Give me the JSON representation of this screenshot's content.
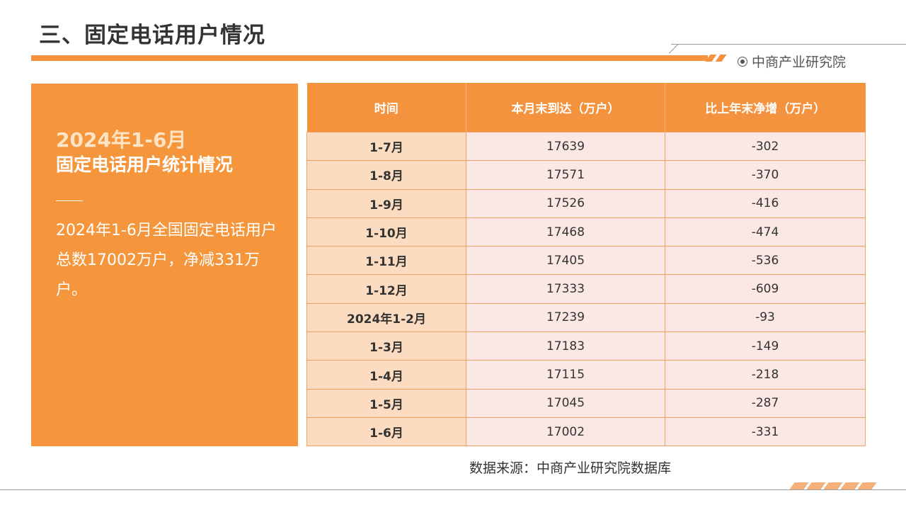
{
  "header": {
    "title": "三、固定电话用户情况",
    "brand": "中商产业研究院",
    "brand_icon": "target-circle-icon",
    "accent_color": "#f5923e"
  },
  "left_panel": {
    "heading_line1": "2024年1-6月",
    "heading_line2": "固定电话用户统计情况",
    "body_text": "2024年1-6月全国固定电话用户总数17002万户，净减331万户。",
    "background_color": "#f5963c"
  },
  "table": {
    "headers": [
      "时间",
      "本月末到达（万户）",
      "比上年末净增（万户）"
    ],
    "rows": [
      {
        "period": "1-7月",
        "total": "17639",
        "net_change": "-302"
      },
      {
        "period": "1-8月",
        "total": "17571",
        "net_change": "-370"
      },
      {
        "period": "1-9月",
        "total": "17526",
        "net_change": "-416"
      },
      {
        "period": "1-10月",
        "total": "17468",
        "net_change": "-474"
      },
      {
        "period": "1-11月",
        "total": "17405",
        "net_change": "-536"
      },
      {
        "period": "1-12月",
        "total": "17333",
        "net_change": "-609"
      },
      {
        "period": "2024年1-2月",
        "total": "17239",
        "net_change": "-93"
      },
      {
        "period": "1-3月",
        "total": "17183",
        "net_change": "-149"
      },
      {
        "period": "1-4月",
        "total": "17115",
        "net_change": "-218"
      },
      {
        "period": "1-5月",
        "total": "17045",
        "net_change": "-287"
      },
      {
        "period": "1-6月",
        "total": "17002",
        "net_change": "-331"
      }
    ]
  },
  "source": "数据来源：中商产业研究院数据库"
}
